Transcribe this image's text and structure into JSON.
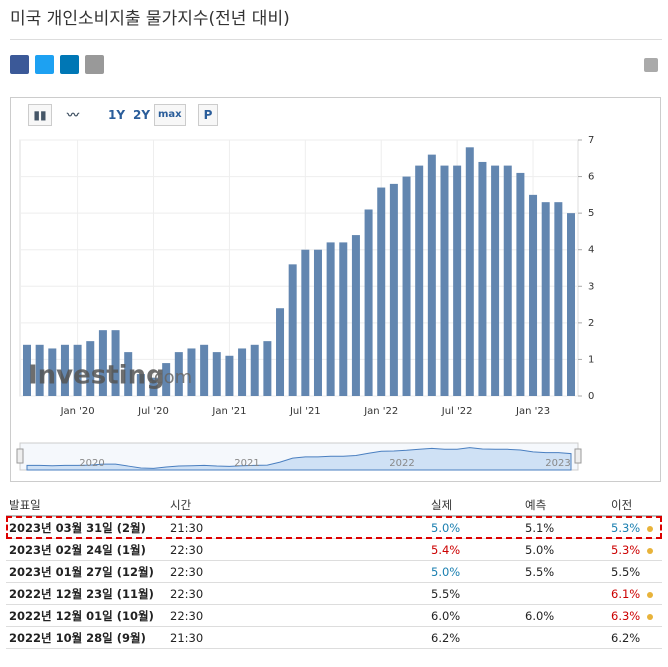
{
  "header": {
    "title": "미국 개인소비지출 물가지수(전년 대비)"
  },
  "toolbar": {
    "buttons": [
      "1Y",
      "2Y",
      "max",
      "P"
    ]
  },
  "chart_data": {
    "type": "bar",
    "color": "#6286b0",
    "categories": [
      null,
      null,
      null,
      null,
      "Jan '20",
      null,
      null,
      null,
      null,
      null,
      "Jul '20",
      null,
      null,
      null,
      null,
      null,
      "Jan '21",
      null,
      null,
      null,
      null,
      null,
      "Jul '21",
      null,
      null,
      null,
      null,
      null,
      "Jan '22",
      null,
      null,
      null,
      null,
      null,
      "Jul '22",
      null,
      null,
      null,
      null,
      null,
      "Jan '23",
      null,
      null,
      null
    ],
    "values": [
      1.4,
      1.4,
      1.3,
      1.4,
      1.4,
      1.5,
      1.8,
      1.8,
      1.2,
      0.6,
      0.5,
      0.9,
      1.2,
      1.3,
      1.4,
      1.2,
      1.1,
      1.3,
      1.4,
      1.5,
      2.4,
      3.6,
      4.0,
      4.0,
      4.2,
      4.2,
      4.4,
      5.1,
      5.7,
      5.8,
      6.0,
      6.3,
      6.6,
      6.3,
      6.3,
      6.8,
      6.4,
      6.3,
      6.3,
      6.1,
      5.5,
      5.3,
      5.3,
      5.0
    ],
    "ylim": [
      0,
      7
    ],
    "yticks": [
      0,
      1,
      2,
      3,
      4,
      5,
      6,
      7
    ],
    "grid": true,
    "watermark": [
      "Investing",
      ".com"
    ],
    "navigator_labels": [
      "2020",
      "2021",
      "2022",
      "2023"
    ]
  },
  "table": {
    "header": [
      "발표일",
      "시간",
      "실제",
      "예측",
      "이전"
    ],
    "rows": [
      [
        "2023년 03월 31일 (2월)",
        "21:30",
        "5.0%",
        "5.1%",
        "5.3%"
      ],
      [
        "2023년 02월 24일 (1월)",
        "22:30",
        "5.4%",
        "5.0%",
        "5.3%"
      ],
      [
        "2023년 01월 27일 (12월)",
        "22:30",
        "5.0%",
        "5.5%",
        "5.5%"
      ],
      [
        "2022년 12월 23일 (11월)",
        "22:30",
        "5.5%",
        null,
        "6.1%"
      ],
      [
        "2022년 12월 01일 (10월)",
        "22:30",
        "6.0%",
        "6.0%",
        "6.3%"
      ],
      [
        "2022년 10월 28일 (9월)",
        "21:30",
        "6.2%",
        null,
        "6.2%"
      ]
    ]
  }
}
